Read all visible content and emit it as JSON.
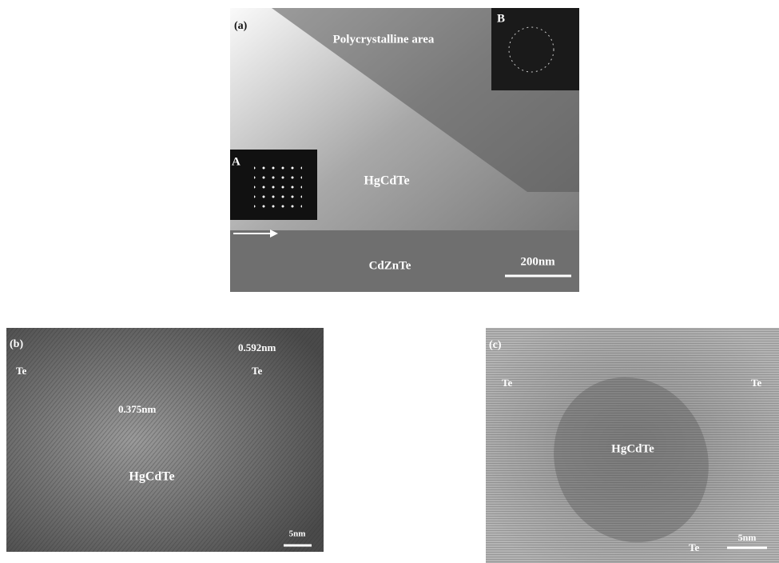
{
  "panels": [
    {
      "label": "(a)",
      "texts": [
        "Polycrystalline area",
        "B",
        "A",
        "HgCdTe",
        "CdZnTe"
      ],
      "scale_bar": "200nm"
    },
    {
      "label": "(b)",
      "texts": [
        "Te",
        "0.592nm",
        "Te",
        "0.375nm",
        "HgCdTe"
      ],
      "scale_bar": "5nm"
    },
    {
      "label": "(c)",
      "texts": [
        "Te",
        "Te",
        "HgCdTe",
        "Te"
      ],
      "scale_bar": "5nm"
    }
  ]
}
